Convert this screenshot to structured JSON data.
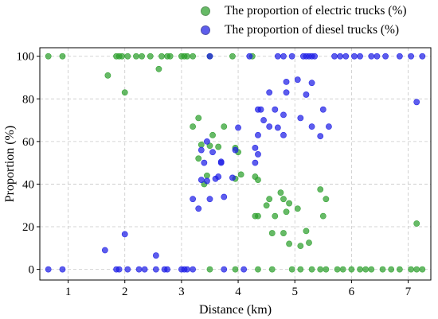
{
  "chart_data": {
    "type": "scatter",
    "title": "",
    "xlabel": "Distance (km)",
    "ylabel": "Proportion (%)",
    "xlim": [
      0.5,
      7.4
    ],
    "ylim": [
      -5,
      104
    ],
    "xticks": [
      1,
      2,
      3,
      4,
      5,
      6,
      7
    ],
    "yticks": [
      0,
      20,
      40,
      60,
      80,
      100
    ],
    "grid": true,
    "legend_position": "top-right",
    "series": [
      {
        "name": "The proportion of electric trucks (%)",
        "color": "#2ca02c",
        "points": [
          [
            0.65,
            100
          ],
          [
            0.9,
            100
          ],
          [
            1.85,
            100
          ],
          [
            1.9,
            100
          ],
          [
            1.95,
            100
          ],
          [
            2.05,
            100
          ],
          [
            2.2,
            100
          ],
          [
            2.3,
            100
          ],
          [
            2.45,
            100
          ],
          [
            2.65,
            100
          ],
          [
            2.75,
            100
          ],
          [
            2.8,
            100
          ],
          [
            3.0,
            100
          ],
          [
            3.05,
            100
          ],
          [
            3.1,
            100
          ],
          [
            3.2,
            100
          ],
          [
            3.5,
            100
          ],
          [
            3.9,
            100
          ],
          [
            4.25,
            100
          ],
          [
            1.7,
            91
          ],
          [
            2.6,
            94
          ],
          [
            2.0,
            83
          ],
          [
            3.3,
            71
          ],
          [
            3.2,
            67
          ],
          [
            3.75,
            67
          ],
          [
            3.55,
            63
          ],
          [
            3.35,
            58.5
          ],
          [
            3.5,
            58
          ],
          [
            3.65,
            57.5
          ],
          [
            3.95,
            57
          ],
          [
            3.3,
            52
          ],
          [
            4.0,
            55
          ],
          [
            3.4,
            40
          ],
          [
            3.45,
            44
          ],
          [
            3.95,
            42.5
          ],
          [
            4.05,
            44.5
          ],
          [
            4.3,
            43.5
          ],
          [
            4.35,
            42
          ],
          [
            4.3,
            25
          ],
          [
            4.35,
            25
          ],
          [
            4.5,
            30
          ],
          [
            4.55,
            33
          ],
          [
            4.65,
            25
          ],
          [
            4.75,
            36
          ],
          [
            4.8,
            33
          ],
          [
            4.85,
            27
          ],
          [
            4.9,
            31
          ],
          [
            4.6,
            17
          ],
          [
            4.8,
            17
          ],
          [
            4.9,
            12
          ],
          [
            5.05,
            28.5
          ],
          [
            5.1,
            11
          ],
          [
            5.2,
            18
          ],
          [
            5.25,
            12.5
          ],
          [
            5.45,
            37.5
          ],
          [
            5.55,
            33
          ],
          [
            5.5,
            25
          ],
          [
            7.15,
            21.5
          ],
          [
            3.5,
            0
          ],
          [
            3.95,
            0
          ],
          [
            4.35,
            0
          ],
          [
            4.6,
            0
          ],
          [
            4.95,
            0
          ],
          [
            5.1,
            0
          ],
          [
            5.3,
            0
          ],
          [
            5.45,
            0
          ],
          [
            5.55,
            0
          ],
          [
            5.75,
            0
          ],
          [
            5.85,
            0
          ],
          [
            6.0,
            0
          ],
          [
            6.15,
            0
          ],
          [
            6.25,
            0
          ],
          [
            6.35,
            0
          ],
          [
            6.55,
            0
          ],
          [
            6.7,
            0
          ],
          [
            6.85,
            0
          ],
          [
            7.05,
            0
          ],
          [
            7.15,
            0
          ],
          [
            7.25,
            0
          ]
        ]
      },
      {
        "name": "The proportion of diesel trucks (%)",
        "color": "#1f1fe6",
        "points": [
          [
            0.65,
            0
          ],
          [
            0.9,
            0
          ],
          [
            1.85,
            0
          ],
          [
            1.9,
            0
          ],
          [
            2.05,
            0
          ],
          [
            2.25,
            0
          ],
          [
            2.35,
            0
          ],
          [
            2.55,
            0
          ],
          [
            2.7,
            0
          ],
          [
            2.75,
            0
          ],
          [
            3.0,
            0
          ],
          [
            3.05,
            0
          ],
          [
            3.1,
            0
          ],
          [
            3.2,
            0
          ],
          [
            3.75,
            0
          ],
          [
            4.1,
            0
          ],
          [
            1.65,
            9
          ],
          [
            2.0,
            16.5
          ],
          [
            2.55,
            6.5
          ],
          [
            3.3,
            28.5
          ],
          [
            3.2,
            33
          ],
          [
            3.5,
            33
          ],
          [
            3.35,
            42
          ],
          [
            3.45,
            41.5
          ],
          [
            3.6,
            42.5
          ],
          [
            3.7,
            50
          ],
          [
            3.75,
            34
          ],
          [
            3.65,
            43.5
          ],
          [
            3.9,
            43
          ],
          [
            3.4,
            50
          ],
          [
            3.7,
            50.5
          ],
          [
            3.45,
            60
          ],
          [
            3.35,
            56
          ],
          [
            3.55,
            55
          ],
          [
            3.95,
            56
          ],
          [
            4.0,
            66.5
          ],
          [
            4.3,
            50
          ],
          [
            4.35,
            54
          ],
          [
            4.3,
            57
          ],
          [
            4.35,
            63
          ],
          [
            4.45,
            70
          ],
          [
            4.4,
            75
          ],
          [
            4.35,
            75
          ],
          [
            4.55,
            67
          ],
          [
            4.55,
            83
          ],
          [
            4.65,
            75
          ],
          [
            4.7,
            66.5
          ],
          [
            4.8,
            72.5
          ],
          [
            4.8,
            63
          ],
          [
            4.85,
            83
          ],
          [
            4.85,
            88
          ],
          [
            5.05,
            89
          ],
          [
            5.1,
            71
          ],
          [
            5.2,
            82
          ],
          [
            5.3,
            87.5
          ],
          [
            5.3,
            67
          ],
          [
            5.45,
            62.5
          ],
          [
            5.5,
            75
          ],
          [
            5.6,
            67
          ],
          [
            7.15,
            78.5
          ],
          [
            3.5,
            100
          ],
          [
            4.2,
            100
          ],
          [
            4.7,
            100
          ],
          [
            4.8,
            100
          ],
          [
            4.95,
            100
          ],
          [
            5.15,
            100
          ],
          [
            5.2,
            100
          ],
          [
            5.25,
            100
          ],
          [
            5.3,
            100
          ],
          [
            5.35,
            100
          ],
          [
            5.7,
            100
          ],
          [
            5.8,
            100
          ],
          [
            5.9,
            100
          ],
          [
            6.05,
            100
          ],
          [
            6.15,
            100
          ],
          [
            6.35,
            100
          ],
          [
            6.45,
            100
          ],
          [
            6.6,
            100
          ],
          [
            6.85,
            100
          ],
          [
            7.05,
            100
          ],
          [
            7.25,
            100
          ]
        ]
      }
    ]
  }
}
